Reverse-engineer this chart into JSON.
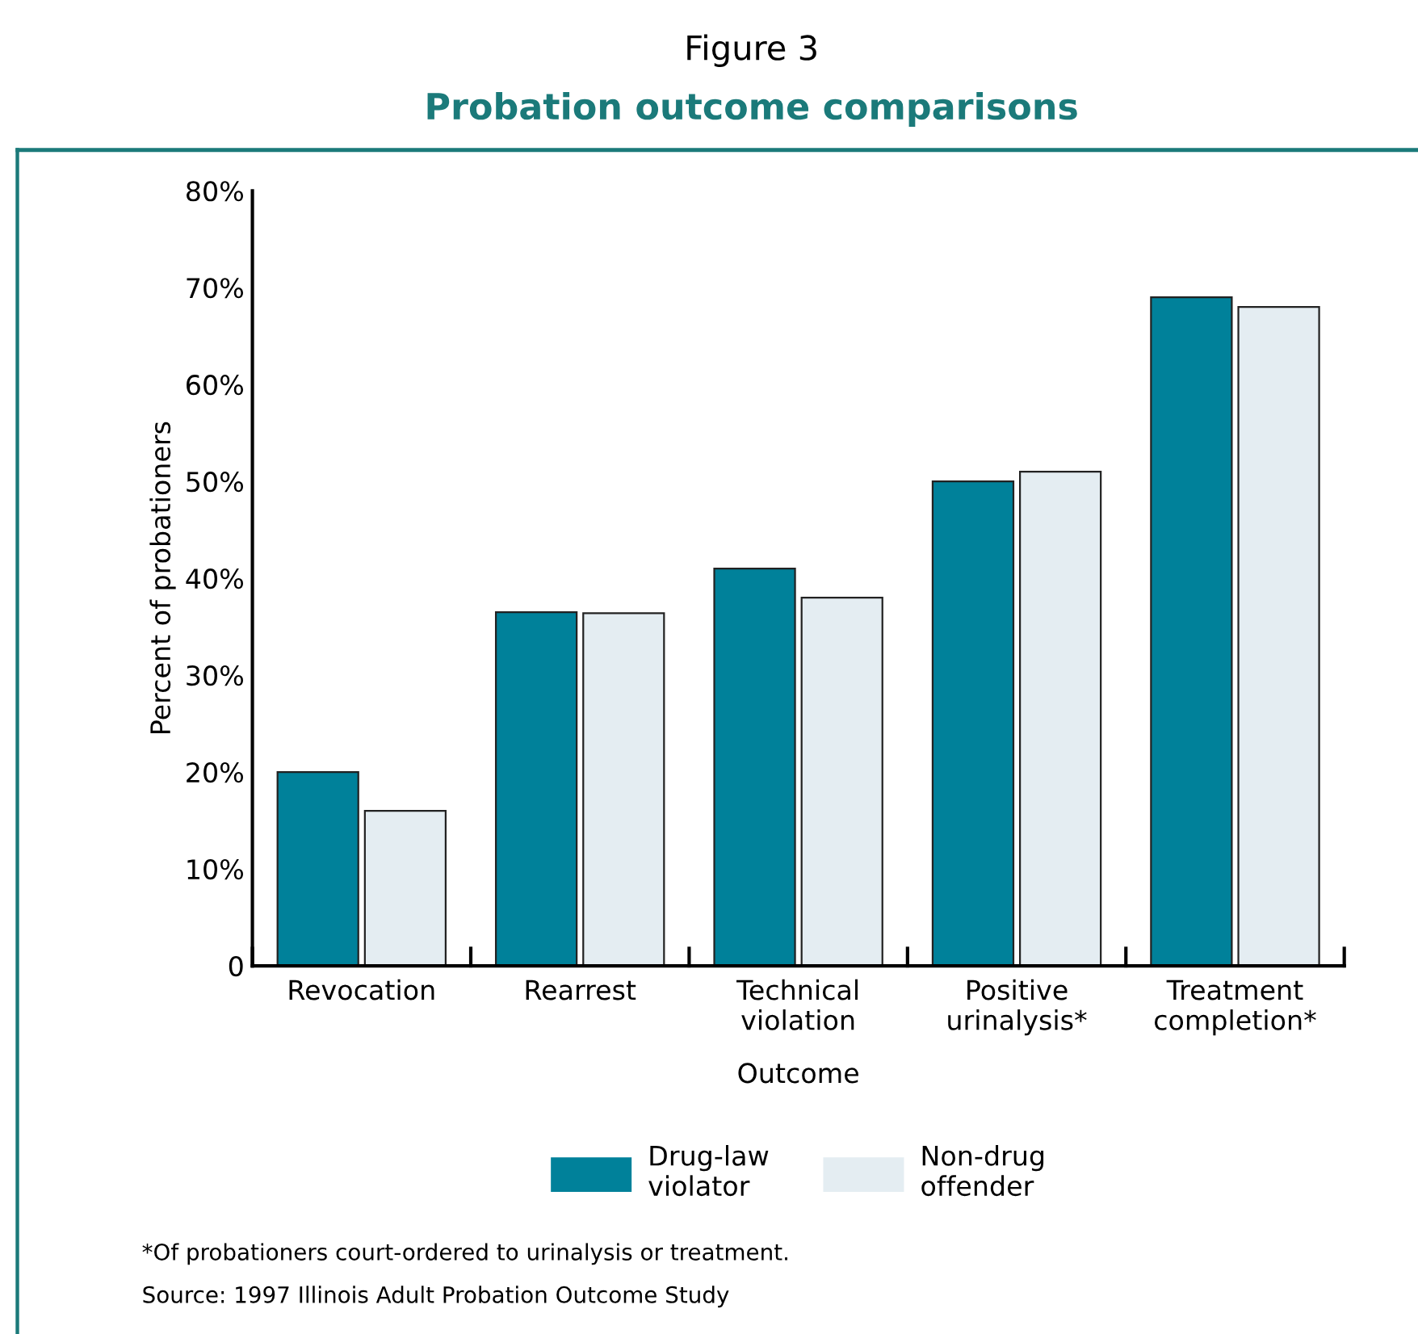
{
  "chart_data": {
    "type": "bar",
    "title": "Figure 3",
    "subtitle": "Probation outcome comparisons",
    "xlabel": "Outcome",
    "ylabel": "Percent of probationers",
    "categories": [
      "Revocation",
      "Rearrest",
      "Technical\nviolation",
      "Positive\nurinalysis*",
      "Treatment\ncompletion*"
    ],
    "series": [
      {
        "name": "Drug-law\nviolator",
        "color": "#00819a",
        "values": [
          20,
          36.5,
          41,
          50,
          69
        ]
      },
      {
        "name": "Non-drug\noffender",
        "color": "#e4edf2",
        "values": [
          16,
          36.4,
          38,
          51,
          68
        ]
      }
    ],
    "ylim": [
      0,
      80
    ],
    "yticks": [
      {
        "value": 0,
        "label": "0"
      },
      {
        "value": 10,
        "label": "10%"
      },
      {
        "value": 20,
        "label": "20%"
      },
      {
        "value": 30,
        "label": "30%"
      },
      {
        "value": 40,
        "label": "40%"
      },
      {
        "value": 50,
        "label": "50%"
      },
      {
        "value": 60,
        "label": "60%"
      },
      {
        "value": 70,
        "label": "70%"
      },
      {
        "value": 80,
        "label": "80%"
      }
    ],
    "grid": false,
    "legend": "bottom",
    "annotations": [
      "*Of probationers court-ordered to urinalysis or treatment.",
      "Source: 1997 Illinois Adult Probation Outcome Study"
    ]
  }
}
